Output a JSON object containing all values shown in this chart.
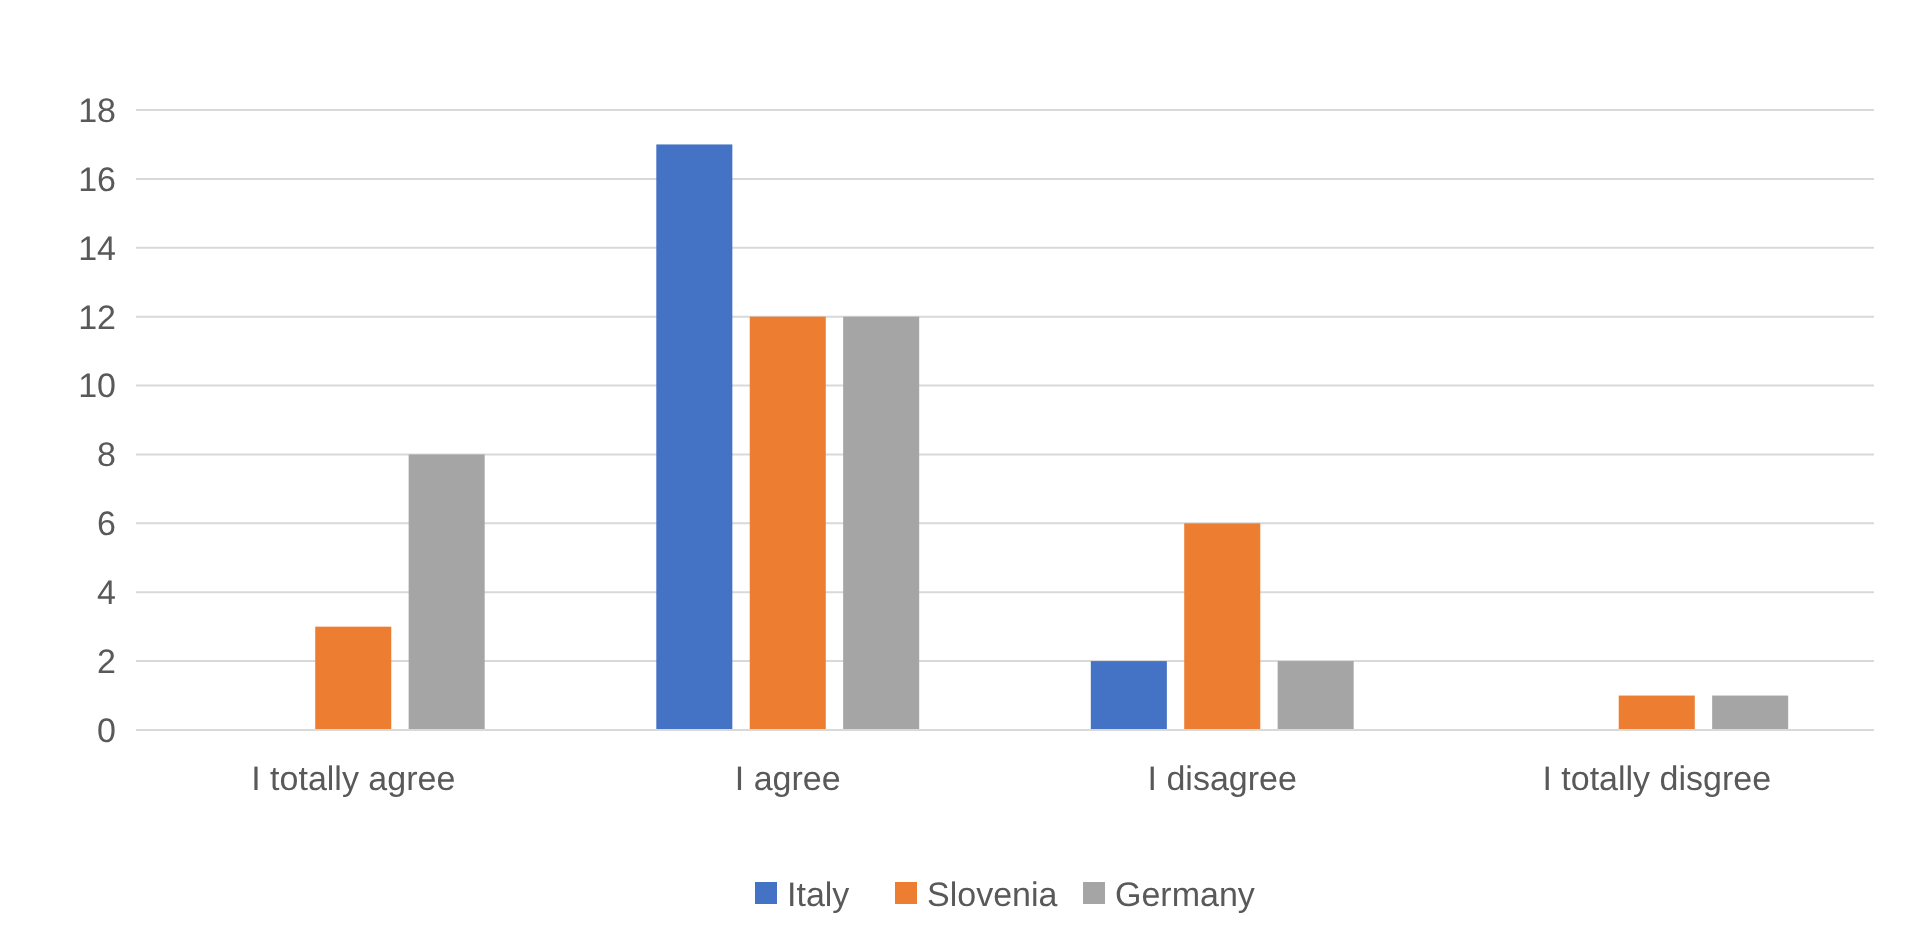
{
  "chart_data": {
    "type": "bar",
    "categories": [
      "I totally agree",
      "I agree",
      "I disagree",
      "I totally disgree"
    ],
    "series": [
      {
        "name": "Italy",
        "color": "#4472c4",
        "values": [
          0,
          17,
          2,
          0
        ]
      },
      {
        "name": "Slovenia",
        "color": "#ed7d31",
        "values": [
          3,
          12,
          6,
          1
        ]
      },
      {
        "name": "Germany",
        "color": "#a5a5a5",
        "values": [
          8,
          12,
          2,
          1
        ]
      }
    ],
    "ylim": [
      0,
      18
    ],
    "yticks": [
      0,
      2,
      4,
      6,
      8,
      10,
      12,
      14,
      16,
      18
    ],
    "grid": "y",
    "legend": "bottom"
  }
}
